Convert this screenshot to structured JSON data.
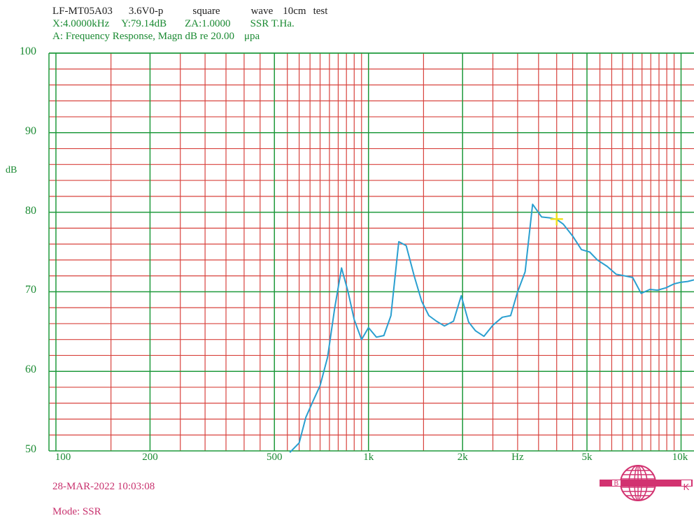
{
  "header": {
    "line1": [
      "LF-MT05A03",
      "3.6V0-p",
      "square",
      "wave",
      "10cm",
      "test"
    ],
    "line2": [
      "X:4.0000kHz",
      "Y:79.14dB",
      "ZA:1.0000",
      "SSR T.Ha."
    ],
    "line3": [
      "A: Frequency Response, Magn dB re 20.00",
      "μpa"
    ]
  },
  "footer": {
    "datetime": "28-MAR-2022 10:03:08",
    "mode": "Mode: SSR"
  },
  "logo": {
    "left_letter": "B",
    "right_letter": "K"
  },
  "colors": {
    "grid_major": "#1f9a3c",
    "grid_minor": "#d8433e",
    "curve": "#2a9fd0",
    "cursor": "#f0e020",
    "label": "#1a8a32",
    "footer": "#c8326e"
  },
  "chart_data": {
    "type": "line",
    "title": "A: Frequency Response, Magn dB re 20.00 μpa",
    "ylabel": "dB",
    "xlabel": "Hz",
    "x_scale": "log",
    "xlim": [
      95,
      11000
    ],
    "ylim": [
      50,
      100
    ],
    "x_tick_labels": [
      {
        "value": 100,
        "label": "100"
      },
      {
        "value": 200,
        "label": "200"
      },
      {
        "value": 500,
        "label": "500"
      },
      {
        "value": 1000,
        "label": "1k"
      },
      {
        "value": 2000,
        "label": "2k"
      },
      {
        "value": 3000,
        "label": "Hz"
      },
      {
        "value": 5000,
        "label": "5k"
      },
      {
        "value": 10000,
        "label": "10k"
      }
    ],
    "y_ticks": [
      50,
      60,
      70,
      80,
      90,
      100
    ],
    "grid": true,
    "cursor": {
      "x": 4000,
      "y": 79.14
    },
    "series": [
      {
        "x": [
          560,
          600,
          630,
          660,
          700,
          740,
          780,
          820,
          860,
          900,
          950,
          1000,
          1060,
          1120,
          1180,
          1250,
          1320,
          1400,
          1480,
          1560,
          1650,
          1750,
          1870,
          1980,
          2090,
          2200,
          2340,
          2500,
          2680,
          2850,
          3000,
          3170,
          3350,
          3580,
          3800,
          4000,
          4200,
          4500,
          4800,
          5100,
          5400,
          5800,
          6200,
          6600,
          7000,
          7450,
          7950,
          8400,
          8950,
          9500,
          10000,
          10500,
          11000
        ],
        "y": [
          49.8,
          51.0,
          54.2,
          56.0,
          58.2,
          61.8,
          68.0,
          73.0,
          70.0,
          66.5,
          64.0,
          65.5,
          64.3,
          64.5,
          67.0,
          76.3,
          75.8,
          72.0,
          68.8,
          67.0,
          66.3,
          65.7,
          66.3,
          69.5,
          66.2,
          65.1,
          64.4,
          65.8,
          66.8,
          67.0,
          70.0,
          72.5,
          81.0,
          79.4,
          79.3,
          79.1,
          78.5,
          77.0,
          75.3,
          75.0,
          74.0,
          73.2,
          72.2,
          72.0,
          71.8,
          69.8,
          70.3,
          70.2,
          70.5,
          71.0,
          71.2,
          71.3,
          71.5
        ]
      }
    ]
  }
}
